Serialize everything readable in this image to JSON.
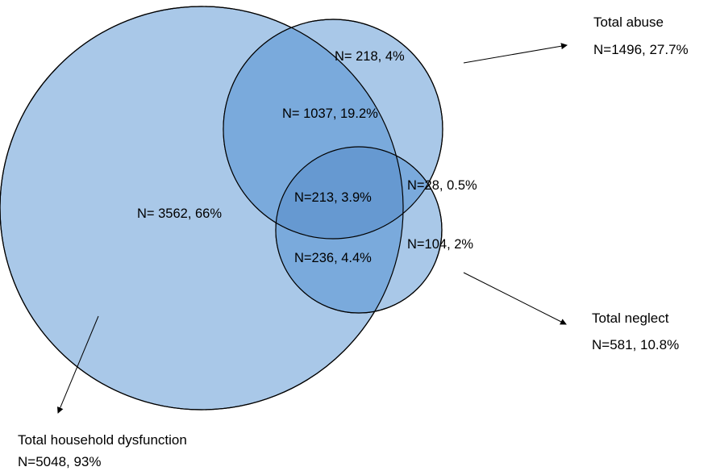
{
  "diagram": {
    "colors": {
      "fill": "#a9c8e8",
      "overlap": "#7aaadc",
      "triple": "#6699d1",
      "stroke": "#000000"
    },
    "sets": [
      {
        "id": "household",
        "title": "Total household dysfunction",
        "total": "N=5048, 93%"
      },
      {
        "id": "abuse",
        "title": "Total abuse",
        "total": "N=1496, 27.7%"
      },
      {
        "id": "neglect",
        "title": "Total neglect",
        "total": "N=581, 10.8%"
      }
    ],
    "regions": {
      "household_only": "N= 3562, 66%",
      "abuse_only": "N= 218, 4%",
      "household_abuse": "N= 1037, 19.2%",
      "abuse_neglect": "N=28, 0.5%",
      "all_three": "N=213, 3.9%",
      "household_neglect": "N=236, 4.4%",
      "neglect_only": "N=104, 2%"
    }
  }
}
